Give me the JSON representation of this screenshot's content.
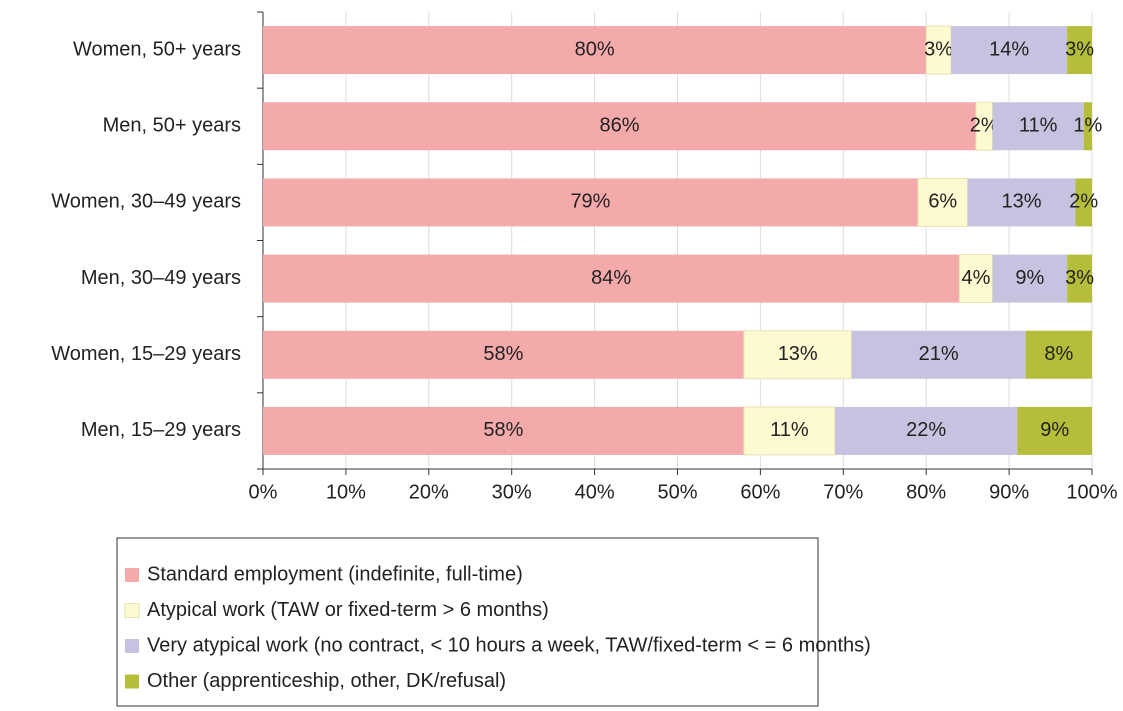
{
  "chart_data": {
    "type": "stacked_bar_horizontal",
    "categories": [
      "Women, 50+ years",
      "Men, 50+ years",
      "Women, 30–49 years",
      "Men, 30–49 years",
      "Women, 15–29 years",
      "Men, 15–29 years"
    ],
    "series": [
      {
        "name": "Standard employment (indefinite, full-time)",
        "color": "#f4a9ab",
        "values": [
          80,
          86,
          79,
          84,
          58,
          58
        ],
        "value_labels": [
          "80%",
          "86%",
          "79%",
          "84%",
          "58%",
          "58%"
        ]
      },
      {
        "name": "Atypical work (TAW or fixed-term > 6 months)",
        "color": "#fdf9d0",
        "values": [
          3,
          2,
          6,
          4,
          13,
          11
        ],
        "value_labels": [
          "3%",
          "2%",
          "6%",
          "4%",
          "13%",
          "11%"
        ]
      },
      {
        "name": "Very atypical work (no contract, < 10 hours a week, TAW/fixed-term < = 6 months)",
        "color": "#c5c3e0",
        "values": [
          14,
          11,
          13,
          9,
          21,
          22
        ],
        "value_labels": [
          "14%",
          "11%",
          "13%",
          "9%",
          "21%",
          "22%"
        ]
      },
      {
        "name": "Other (apprenticeship, other, DK/refusal)",
        "color": "#b5bd3a",
        "values": [
          3,
          1,
          2,
          3,
          8,
          9
        ],
        "value_labels": [
          "3%",
          "1%",
          "2%",
          "3%",
          "8%",
          "9%"
        ]
      }
    ],
    "xlim": [
      0,
      100
    ],
    "xticks": [
      {
        "value": 0,
        "label": "0%"
      },
      {
        "value": 10,
        "label": "10%"
      },
      {
        "value": 20,
        "label": "20%"
      },
      {
        "value": 30,
        "label": "30%"
      },
      {
        "value": 40,
        "label": "40%"
      },
      {
        "value": 50,
        "label": "50%"
      },
      {
        "value": 60,
        "label": "60%"
      },
      {
        "value": 70,
        "label": "70%"
      },
      {
        "value": 80,
        "label": "80%"
      },
      {
        "value": 90,
        "label": "90%"
      },
      {
        "value": 100,
        "label": "100%"
      }
    ],
    "grid": true,
    "legend": "bottom"
  }
}
